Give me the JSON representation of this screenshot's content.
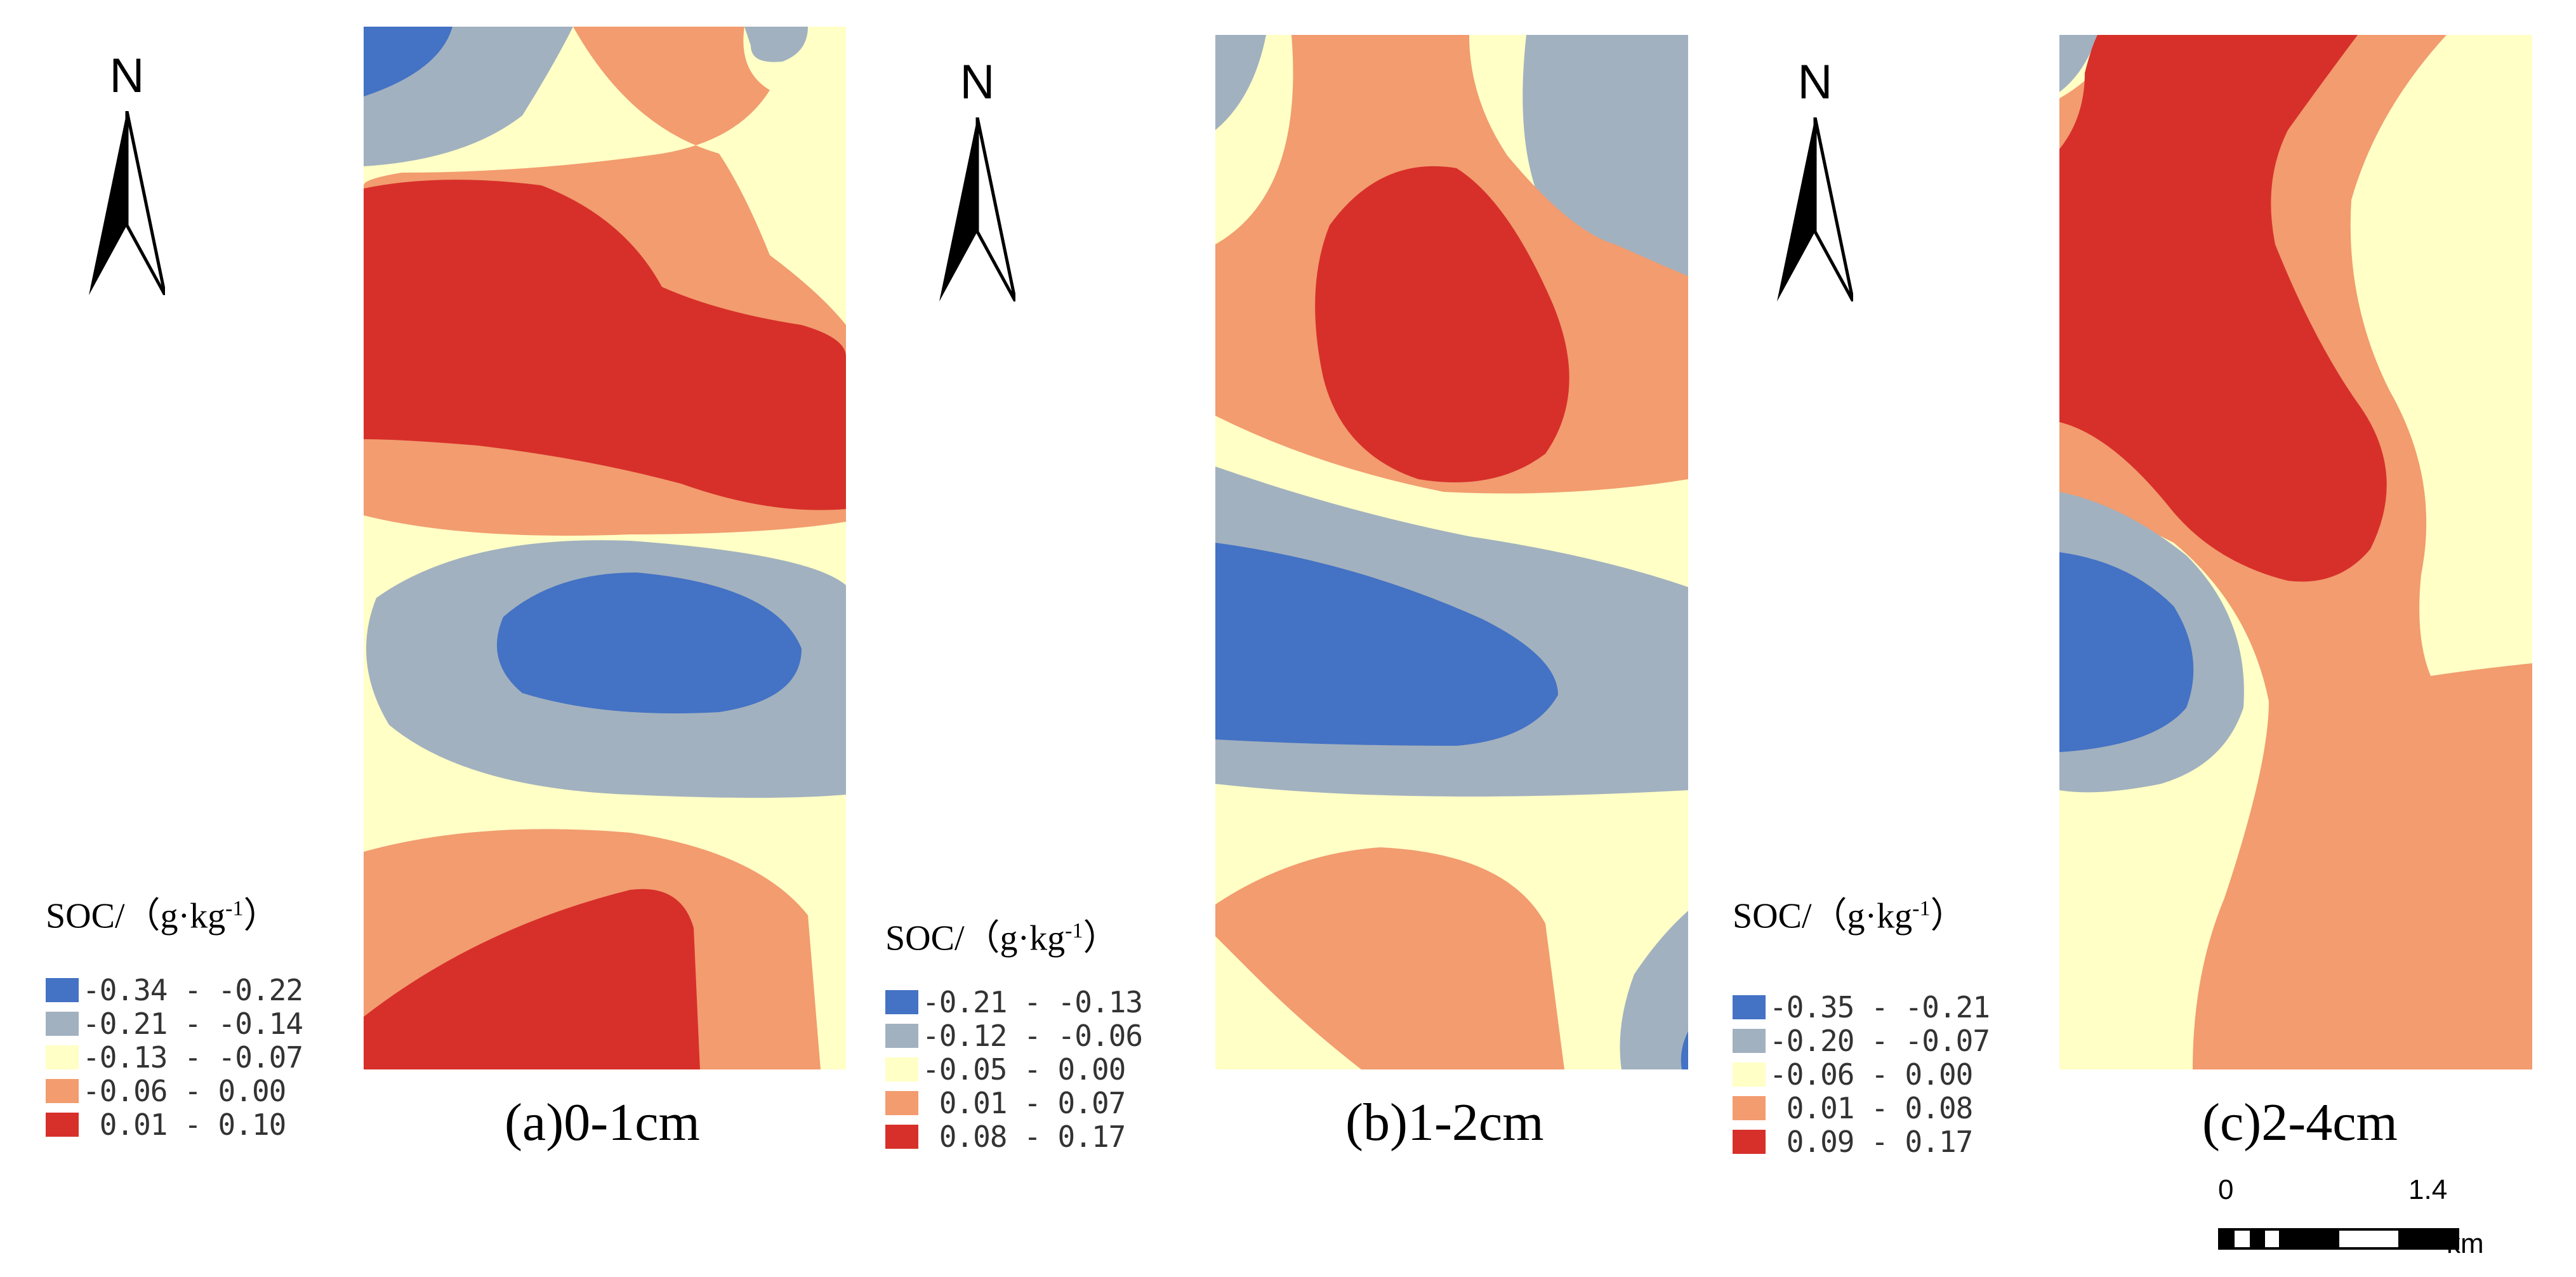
{
  "north_label": "N",
  "legend_title": "SOC/（g·kg",
  "legend_title_sup": "-1",
  "legend_title_close": "）",
  "colors": {
    "class1": "#4472c4",
    "class2": "#a2b1bf",
    "class3": "#ffffc6",
    "class4": "#f29c6f",
    "class5": "#d7302a"
  },
  "panels": [
    {
      "caption": "(a)0-1cm",
      "legend": [
        "-0.34 - -0.22",
        "-0.21 - -0.14",
        "-0.13 - -0.07",
        "-0.06 - 0.00",
        " 0.01 - 0.10"
      ]
    },
    {
      "caption": "(b)1-2cm",
      "legend": [
        "-0.21 - -0.13",
        "-0.12 - -0.06",
        "-0.05 - 0.00",
        " 0.01 - 0.07",
        " 0.08 - 0.17"
      ]
    },
    {
      "caption": "(c)2-4cm",
      "legend": [
        "-0.35 - -0.21",
        "-0.20 - -0.07",
        "-0.06 - 0.00",
        " 0.01 - 0.08",
        " 0.09 - 0.17"
      ]
    }
  ],
  "scalebar": {
    "start_label": "0",
    "end_label": "1.4",
    "unit": "km"
  }
}
